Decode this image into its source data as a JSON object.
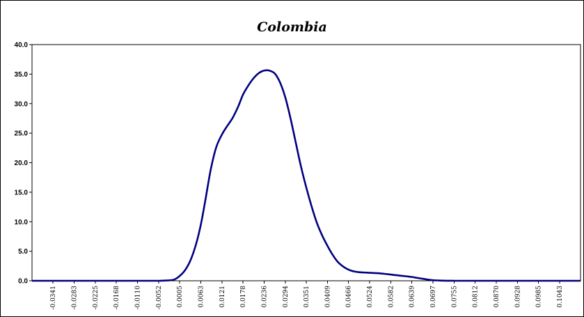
{
  "chart_data": {
    "type": "line",
    "title": "Colombia",
    "xlabel": "",
    "ylabel": "",
    "ylim": [
      0,
      40
    ],
    "yticks": [
      "0.0",
      "5.0",
      "10.0",
      "15.0",
      "20.0",
      "25.0",
      "30.0",
      "35.0",
      "40.0"
    ],
    "xticks": [
      "-0.0341",
      "-0.0283",
      "-0.0225",
      "-0.0168",
      "-0.0110",
      "-0.0052",
      "0.0005",
      "0.0063",
      "0.0121",
      "0.0178",
      "0.0236",
      "0.0294",
      "0.0351",
      "0.0409",
      "0.0466",
      "0.0524",
      "0.0582",
      "0.0639",
      "0.0697",
      "0.0755",
      "0.0812",
      "0.0870",
      "0.0928",
      "0.0985",
      "0.1043"
    ],
    "xlim": [
      -0.0398,
      0.11
    ],
    "grid": false,
    "legend": "none",
    "line_color": "#000080",
    "series": [
      {
        "x": [
          -0.0398,
          -0.0341,
          -0.0283,
          -0.0225,
          -0.0168,
          -0.011,
          -0.0052,
          -0.003,
          -0.001,
          0.0005,
          0.002,
          0.0035,
          0.005,
          0.0063,
          0.0075,
          0.009,
          0.0105,
          0.0121,
          0.0135,
          0.015,
          0.0165,
          0.0178,
          0.0192,
          0.0207,
          0.0222,
          0.0236,
          0.025,
          0.0265,
          0.028,
          0.0294,
          0.0308,
          0.0322,
          0.0336,
          0.0351,
          0.0366,
          0.038,
          0.0395,
          0.0409,
          0.0423,
          0.0437,
          0.0452,
          0.0466,
          0.048,
          0.0495,
          0.051,
          0.0524,
          0.0538,
          0.0553,
          0.0568,
          0.0582,
          0.0596,
          0.061,
          0.0625,
          0.0639,
          0.0653,
          0.0668,
          0.0683,
          0.0697,
          0.0712,
          0.0726,
          0.074,
          0.0755,
          0.077,
          0.0783,
          0.0797,
          0.0812,
          0.087,
          0.0928,
          0.0985,
          0.1043,
          0.11
        ],
        "y": [
          0,
          0,
          0,
          0,
          0,
          0,
          0,
          0.05,
          0.2,
          0.8,
          1.8,
          3.5,
          6.2,
          9.5,
          13.5,
          18.8,
          22.6,
          24.8,
          26.2,
          27.6,
          29.5,
          31.5,
          33.0,
          34.3,
          35.2,
          35.6,
          35.6,
          35.1,
          33.5,
          31.0,
          27.5,
          23.5,
          19.5,
          15.8,
          12.5,
          9.8,
          7.6,
          5.9,
          4.4,
          3.2,
          2.4,
          1.9,
          1.6,
          1.45,
          1.4,
          1.35,
          1.3,
          1.25,
          1.15,
          1.05,
          0.95,
          0.85,
          0.75,
          0.65,
          0.5,
          0.35,
          0.2,
          0.1,
          0.05,
          0.02,
          0.01,
          0,
          0,
          0,
          0,
          0,
          0,
          0,
          0,
          0,
          0
        ]
      }
    ]
  }
}
